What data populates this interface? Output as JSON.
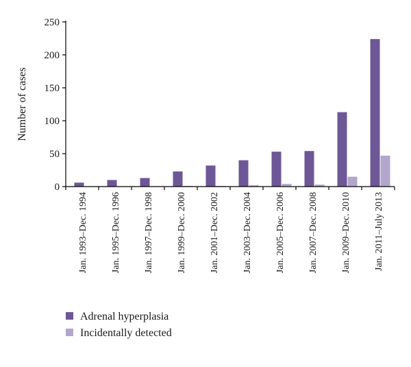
{
  "chart_data": {
    "type": "bar",
    "title": "",
    "xlabel": "",
    "ylabel": "Number of cases",
    "ylim": [
      0,
      250
    ],
    "yticks": [
      0,
      50,
      100,
      150,
      200,
      250
    ],
    "grid": false,
    "legend_position": "bottom-left",
    "categories": [
      "Jan. 1993–Dec. 1994",
      "Jan. 1995–Dec. 1996",
      "Jan. 1997–Dec. 1998",
      "Jan. 1999–Dec. 2000",
      "Jan. 2001–Dec. 2002",
      "Jan. 2003–Dec. 2004",
      "Jan. 2005–Dec. 2006",
      "Jan. 2007–Dec. 2008",
      "Jan. 2009–Dec. 2010",
      "Jan. 2011–July 2013"
    ],
    "series": [
      {
        "name": "Adrenal hyperplasia",
        "color": "#6e5796",
        "values": [
          6,
          10,
          13,
          23,
          32,
          40,
          53,
          54,
          113,
          224
        ]
      },
      {
        "name": "Incidentally detected",
        "color": "#b3a6cd",
        "values": [
          0,
          0,
          0,
          1,
          1,
          2,
          4,
          3,
          15,
          47
        ]
      }
    ]
  }
}
